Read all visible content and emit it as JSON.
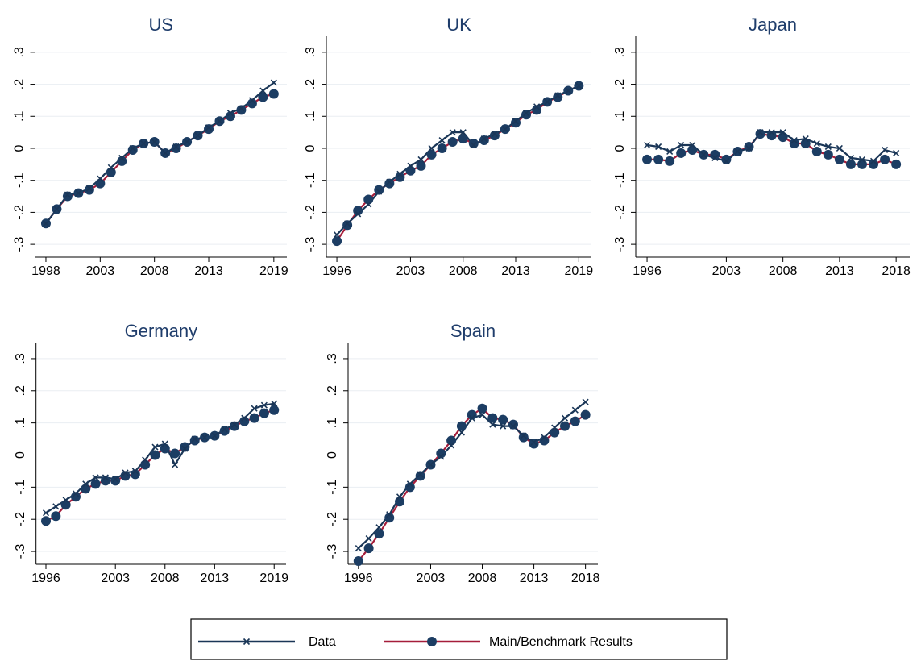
{
  "chart_data": [
    {
      "type": "line",
      "title": "US",
      "x": [
        1998,
        1999,
        2000,
        2001,
        2002,
        2003,
        2004,
        2005,
        2006,
        2007,
        2008,
        2009,
        2010,
        2011,
        2012,
        2013,
        2014,
        2015,
        2016,
        2017,
        2018,
        2019
      ],
      "series": [
        {
          "color": "#1a3657",
          "marker": "x",
          "marker_color": "#1a3657",
          "values": [
            -0.235,
            -0.19,
            -0.145,
            -0.14,
            -0.125,
            -0.095,
            -0.06,
            -0.03,
            0,
            0.015,
            0.02,
            -0.015,
            0.005,
            0.02,
            0.04,
            0.065,
            0.085,
            0.11,
            0.125,
            0.15,
            0.18,
            0.205
          ]
        },
        {
          "color": "#a51d3a",
          "marker": "circle",
          "marker_color": "#1c3d63",
          "values": [
            -0.235,
            -0.19,
            -0.15,
            -0.14,
            -0.13,
            -0.11,
            -0.075,
            -0.04,
            -0.005,
            0.015,
            0.02,
            -0.015,
            0,
            0.02,
            0.04,
            0.06,
            0.085,
            0.1,
            0.12,
            0.14,
            0.16,
            0.17
          ]
        }
      ],
      "xlim": [
        1997,
        2020.2
      ],
      "xticks": [
        1998,
        2003,
        2008,
        2013,
        2019
      ],
      "ylim": [
        -0.34,
        0.35
      ],
      "yticks": [
        {
          "value": -0.3,
          "label": "-.3"
        },
        {
          "value": -0.2,
          "label": "-.2"
        },
        {
          "value": -0.1,
          "label": "-.1"
        },
        0,
        {
          "value": 0.1,
          "label": ".1"
        },
        {
          "value": 0.2,
          "label": ".2"
        },
        {
          "value": 0.3,
          "label": ".3"
        }
      ],
      "grid": true
    },
    {
      "type": "line",
      "title": "UK",
      "x": [
        1996,
        1997,
        1998,
        1999,
        2000,
        2001,
        2002,
        2003,
        2004,
        2005,
        2006,
        2007,
        2008,
        2009,
        2010,
        2011,
        2012,
        2013,
        2014,
        2015,
        2016,
        2017,
        2018,
        2019
      ],
      "series": [
        {
          "color": "#1a3657",
          "marker": "x",
          "marker_color": "#1a3657",
          "values": [
            -0.27,
            -0.235,
            -0.205,
            -0.175,
            -0.135,
            -0.105,
            -0.08,
            -0.055,
            -0.035,
            0,
            0.025,
            0.05,
            0.05,
            0.01,
            0.03,
            0.045,
            0.06,
            0.085,
            0.11,
            0.13,
            0.145,
            0.165,
            0.18,
            0.195
          ]
        },
        {
          "color": "#a51d3a",
          "marker": "circle",
          "marker_color": "#1c3d63",
          "values": [
            -0.29,
            -0.24,
            -0.195,
            -0.16,
            -0.13,
            -0.11,
            -0.09,
            -0.07,
            -0.055,
            -0.02,
            0,
            0.02,
            0.03,
            0.015,
            0.025,
            0.04,
            0.06,
            0.08,
            0.105,
            0.12,
            0.145,
            0.16,
            0.18,
            0.195
          ]
        }
      ],
      "xlim": [
        1995,
        2020.2
      ],
      "xticks": [
        1996,
        2003,
        2008,
        2013,
        2019
      ],
      "ylim": [
        -0.34,
        0.35
      ],
      "yticks": [
        {
          "value": -0.3,
          "label": "-.3"
        },
        {
          "value": -0.2,
          "label": "-.2"
        },
        {
          "value": -0.1,
          "label": "-.1"
        },
        0,
        {
          "value": 0.1,
          "label": ".1"
        },
        {
          "value": 0.2,
          "label": ".2"
        },
        {
          "value": 0.3,
          "label": ".3"
        }
      ],
      "grid": true
    },
    {
      "type": "line",
      "title": "Japan",
      "x": [
        1996,
        1997,
        1998,
        1999,
        2000,
        2001,
        2002,
        2003,
        2004,
        2005,
        2006,
        2007,
        2008,
        2009,
        2010,
        2011,
        2012,
        2013,
        2014,
        2015,
        2016,
        2017,
        2018
      ],
      "series": [
        {
          "color": "#1a3657",
          "marker": "x",
          "marker_color": "#1a3657",
          "values": [
            0.01,
            0.005,
            -0.01,
            0.01,
            0.01,
            -0.02,
            -0.03,
            -0.04,
            -0.01,
            0,
            0.05,
            0.05,
            0.05,
            0.025,
            0.03,
            0.015,
            0.005,
            0,
            -0.03,
            -0.035,
            -0.04,
            -0.005,
            -0.015
          ]
        },
        {
          "color": "#a51d3a",
          "marker": "circle",
          "marker_color": "#1c3d63",
          "values": [
            -0.035,
            -0.035,
            -0.04,
            -0.015,
            -0.005,
            -0.02,
            -0.02,
            -0.035,
            -0.01,
            0.005,
            0.045,
            0.04,
            0.035,
            0.015,
            0.015,
            -0.01,
            -0.02,
            -0.035,
            -0.05,
            -0.05,
            -0.05,
            -0.035,
            -0.05
          ]
        }
      ],
      "xlim": [
        1995,
        2019.2
      ],
      "xticks": [
        1996,
        2003,
        2008,
        2013,
        2018
      ],
      "ylim": [
        -0.34,
        0.35
      ],
      "yticks": [
        {
          "value": -0.3,
          "label": "-.3"
        },
        {
          "value": -0.2,
          "label": "-.2"
        },
        {
          "value": -0.1,
          "label": "-.1"
        },
        0,
        {
          "value": 0.1,
          "label": ".1"
        },
        {
          "value": 0.2,
          "label": ".2"
        },
        {
          "value": 0.3,
          "label": ".3"
        }
      ],
      "grid": true
    },
    {
      "type": "line",
      "title": "Germany",
      "x": [
        1996,
        1997,
        1998,
        1999,
        2000,
        2001,
        2002,
        2003,
        2004,
        2005,
        2006,
        2007,
        2008,
        2009,
        2010,
        2011,
        2012,
        2013,
        2014,
        2015,
        2016,
        2017,
        2018,
        2019
      ],
      "series": [
        {
          "color": "#1a3657",
          "marker": "x",
          "marker_color": "#1a3657",
          "values": [
            -0.18,
            -0.16,
            -0.14,
            -0.12,
            -0.09,
            -0.07,
            -0.07,
            -0.075,
            -0.055,
            -0.05,
            -0.015,
            0.025,
            0.035,
            -0.03,
            0.02,
            0.05,
            0.055,
            0.06,
            0.08,
            0.095,
            0.115,
            0.145,
            0.155,
            0.16
          ]
        },
        {
          "color": "#a51d3a",
          "marker": "circle",
          "marker_color": "#1c3d63",
          "values": [
            -0.205,
            -0.19,
            -0.155,
            -0.13,
            -0.105,
            -0.09,
            -0.08,
            -0.08,
            -0.065,
            -0.06,
            -0.03,
            0,
            0.02,
            0.005,
            0.025,
            0.045,
            0.055,
            0.06,
            0.075,
            0.09,
            0.105,
            0.115,
            0.13,
            0.14
          ]
        }
      ],
      "xlim": [
        1995,
        2020.2
      ],
      "xticks": [
        1996,
        2003,
        2008,
        2013,
        2019
      ],
      "ylim": [
        -0.34,
        0.35
      ],
      "yticks": [
        {
          "value": -0.3,
          "label": "-.3"
        },
        {
          "value": -0.2,
          "label": "-.2"
        },
        {
          "value": -0.1,
          "label": "-.1"
        },
        0,
        {
          "value": 0.1,
          "label": ".1"
        },
        {
          "value": 0.2,
          "label": ".2"
        },
        {
          "value": 0.3,
          "label": ".3"
        }
      ],
      "grid": true
    },
    {
      "type": "line",
      "title": "Spain",
      "x": [
        1996,
        1997,
        1998,
        1999,
        2000,
        2001,
        2002,
        2003,
        2004,
        2005,
        2006,
        2007,
        2008,
        2009,
        2010,
        2011,
        2012,
        2013,
        2014,
        2015,
        2016,
        2017,
        2018
      ],
      "series": [
        {
          "color": "#1a3657",
          "marker": "x",
          "marker_color": "#1a3657",
          "values": [
            -0.29,
            -0.26,
            -0.225,
            -0.185,
            -0.13,
            -0.09,
            -0.06,
            -0.03,
            -0.005,
            0.03,
            0.07,
            0.115,
            0.125,
            0.095,
            0.09,
            0.09,
            0.06,
            0.04,
            0.055,
            0.085,
            0.115,
            0.14,
            0.165
          ]
        },
        {
          "color": "#a51d3a",
          "marker": "circle",
          "marker_color": "#1c3d63",
          "values": [
            -0.33,
            -0.29,
            -0.245,
            -0.195,
            -0.145,
            -0.1,
            -0.065,
            -0.03,
            0.005,
            0.045,
            0.09,
            0.125,
            0.145,
            0.115,
            0.11,
            0.095,
            0.055,
            0.035,
            0.045,
            0.07,
            0.09,
            0.105,
            0.125
          ]
        }
      ],
      "xlim": [
        1995,
        2019.2
      ],
      "xticks": [
        1996,
        2003,
        2008,
        2013,
        2018
      ],
      "ylim": [
        -0.34,
        0.35
      ],
      "yticks": [
        {
          "value": -0.3,
          "label": "-.3"
        },
        {
          "value": -0.2,
          "label": "-.2"
        },
        {
          "value": -0.1,
          "label": "-.1"
        },
        0,
        {
          "value": 0.1,
          "label": ".1"
        },
        {
          "value": 0.2,
          "label": ".2"
        },
        {
          "value": 0.3,
          "label": ".3"
        }
      ],
      "grid": true
    }
  ],
  "legend": {
    "entries": [
      {
        "name": "Data",
        "color": "#1a3657",
        "marker": "x",
        "marker_color": "#1a3657"
      },
      {
        "name": "Main/Benchmark Results",
        "color": "#a51d3a",
        "marker": "circle",
        "marker_color": "#1c3d63"
      }
    ]
  }
}
